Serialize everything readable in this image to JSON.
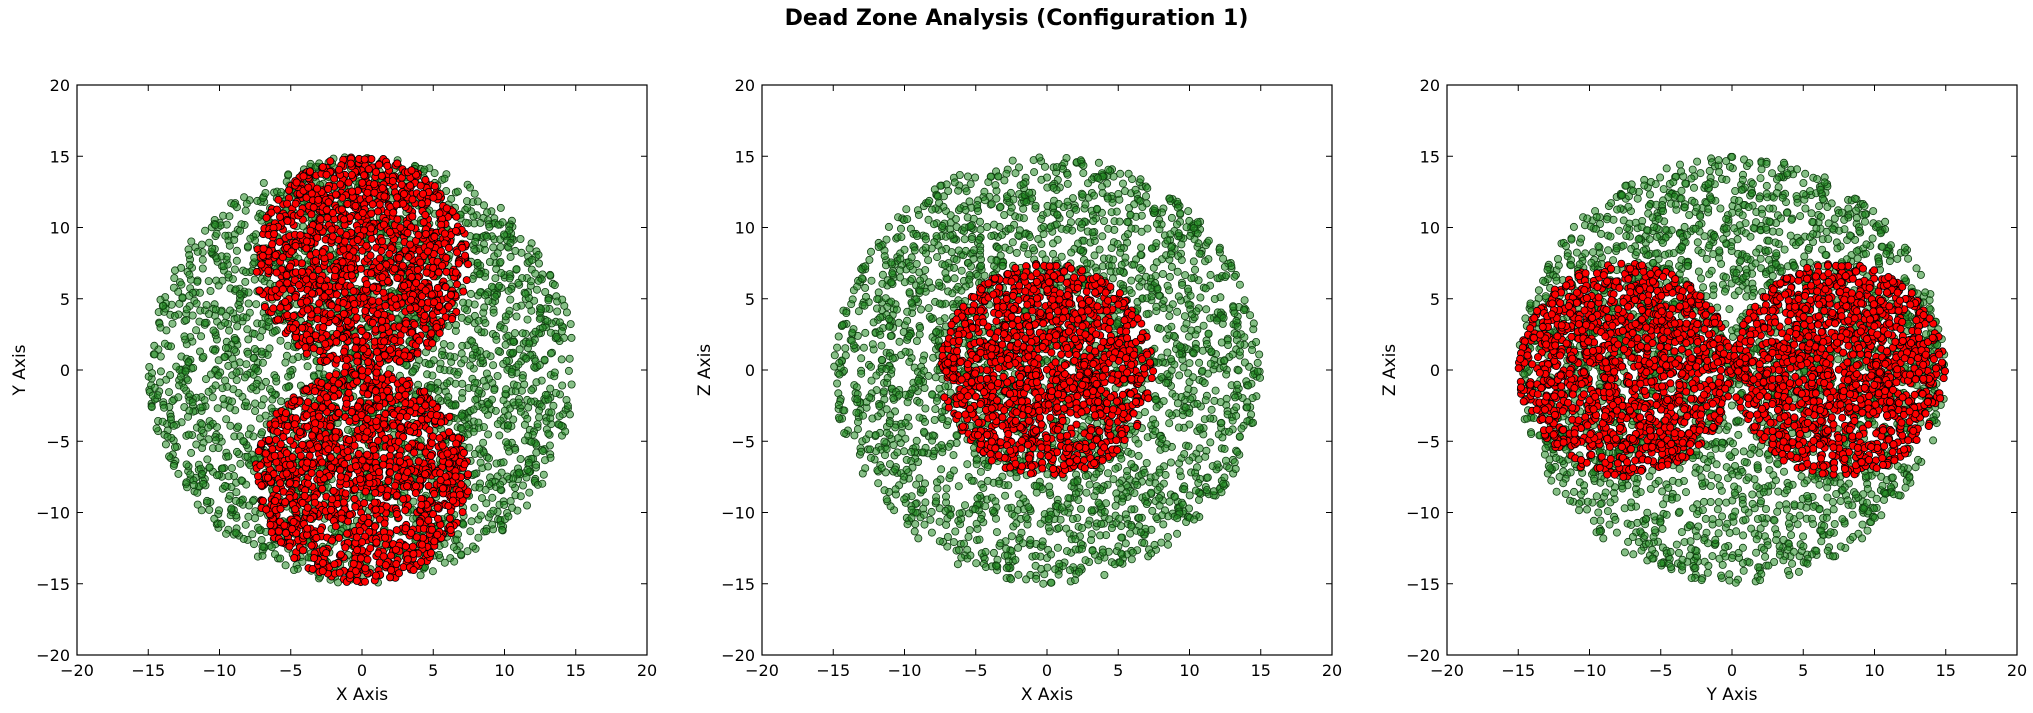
{
  "title": "Dead Zone Analysis (Configuration 1)",
  "colors": {
    "outer_fill": "#228b22",
    "outer_stroke": "#0f3d0f",
    "inner_fill": "#ff0000",
    "inner_stroke": "#000000"
  },
  "chart_data": [
    {
      "type": "scatter",
      "title": "",
      "xlabel": "X Axis",
      "ylabel": "Y Axis",
      "xlim": [
        -20,
        20
      ],
      "ylim": [
        -20,
        20
      ],
      "xticks": [
        -20,
        -15,
        -10,
        -5,
        0,
        5,
        10,
        15,
        20
      ],
      "yticks": [
        -20,
        -15,
        -10,
        -5,
        0,
        5,
        10,
        15,
        20
      ],
      "grid": false,
      "series": [
        {
          "style": "green semi-transparent markers",
          "region": "disk",
          "center": [
            0,
            0
          ],
          "radius": 15
        },
        {
          "style": "red markers",
          "region": "two disks",
          "centers": [
            [
              0,
              7.5
            ],
            [
              0,
              -7.5
            ]
          ],
          "radius": 7.5
        }
      ]
    },
    {
      "type": "scatter",
      "title": "",
      "xlabel": "X Axis",
      "ylabel": "Z Axis",
      "xlim": [
        -20,
        20
      ],
      "ylim": [
        -20,
        20
      ],
      "xticks": [
        -20,
        -15,
        -10,
        -5,
        0,
        5,
        10,
        15,
        20
      ],
      "yticks": [
        -20,
        -15,
        -10,
        -5,
        0,
        5,
        10,
        15,
        20
      ],
      "grid": false,
      "series": [
        {
          "style": "green semi-transparent markers",
          "region": "disk",
          "center": [
            0,
            0
          ],
          "radius": 15
        },
        {
          "style": "red markers",
          "region": "disk",
          "centers": [
            [
              0,
              0
            ]
          ],
          "radius": 7.5
        }
      ]
    },
    {
      "type": "scatter",
      "title": "",
      "xlabel": "Y Axis",
      "ylabel": "Z Axis",
      "xlim": [
        -20,
        20
      ],
      "ylim": [
        -20,
        20
      ],
      "xticks": [
        -20,
        -15,
        -10,
        -5,
        0,
        5,
        10,
        15,
        20
      ],
      "yticks": [
        -20,
        -15,
        -10,
        -5,
        0,
        5,
        10,
        15,
        20
      ],
      "grid": false,
      "series": [
        {
          "style": "green semi-transparent markers",
          "region": "disk",
          "center": [
            0,
            0
          ],
          "radius": 15
        },
        {
          "style": "red markers",
          "region": "two disks",
          "centers": [
            [
              -7.5,
              0
            ],
            [
              7.5,
              0
            ]
          ],
          "radius": 7.5
        }
      ]
    }
  ]
}
